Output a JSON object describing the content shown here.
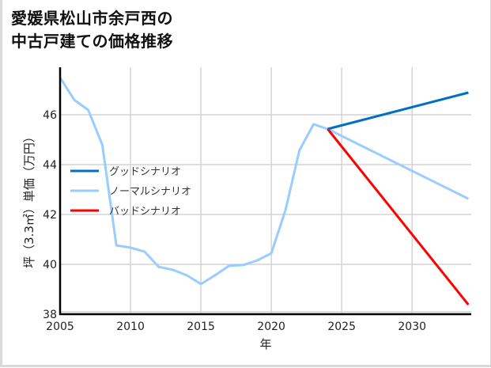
{
  "title": {
    "line1": "愛媛県松山市余戸西の",
    "line2": "中古戸建ての価格推移"
  },
  "chart_data": {
    "type": "line",
    "title": "愛媛県松山市余戸西の中古戸建ての価格推移",
    "xlabel": "年",
    "ylabel": "坪（3.3㎡）単価（万円）",
    "xlim": [
      2005,
      2034.2
    ],
    "ylim": [
      38,
      47.6
    ],
    "xticks": [
      2005,
      2010,
      2015,
      2020,
      2025,
      2030
    ],
    "yticks": [
      38,
      40,
      42,
      44,
      46
    ],
    "grid": true,
    "legend_position": "center-left",
    "series": [
      {
        "name": "グッドシナリオ",
        "color": "#0070c0",
        "x": [
          2024,
          2034
        ],
        "values": [
          45.43,
          46.89
        ]
      },
      {
        "name": "ノーマルシナリオ",
        "color": "#99ccff",
        "x": [
          2005,
          2006,
          2007,
          2008,
          2009,
          2010,
          2011,
          2012,
          2013,
          2014,
          2015,
          2016,
          2017,
          2018,
          2019,
          2020,
          2021,
          2022,
          2023,
          2024,
          2034
        ],
        "values": [
          47.49,
          46.6,
          46.19,
          44.79,
          40.76,
          40.67,
          40.51,
          39.9,
          39.78,
          39.56,
          39.21,
          39.56,
          39.94,
          39.97,
          40.16,
          40.44,
          42.16,
          44.57,
          45.62,
          45.43,
          42.63
        ]
      },
      {
        "name": "バッドシナリオ",
        "color": "#ff0000",
        "x": [
          2024,
          2034
        ],
        "values": [
          45.43,
          38.38
        ]
      }
    ]
  },
  "colors": {
    "grid": "#d3d3d3",
    "axis": "#000000",
    "frame": "#d9d9d9"
  }
}
